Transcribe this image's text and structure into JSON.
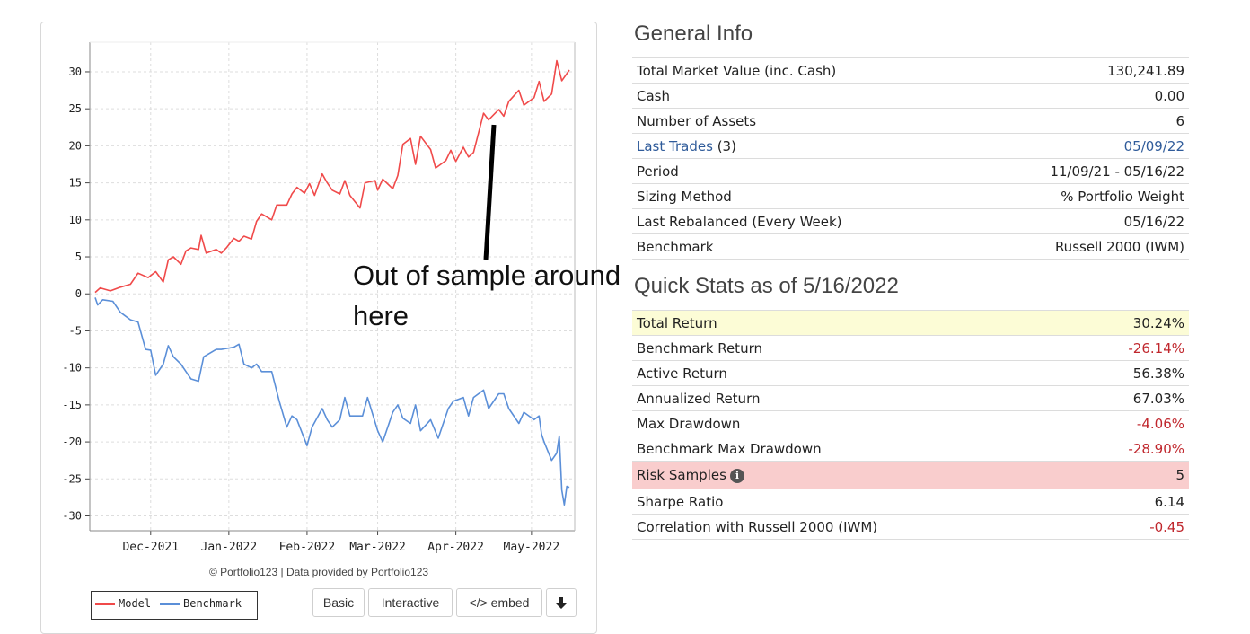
{
  "chart_data": {
    "type": "line",
    "title": "",
    "xlabel": "",
    "ylabel": "",
    "ylim": [
      -32,
      34
    ],
    "yticks": [
      30,
      25,
      20,
      15,
      10,
      5,
      0,
      -5,
      -10,
      -15,
      -20,
      -25,
      -30
    ],
    "x_tick_labels": [
      "Dec-2021",
      "Jan-2022",
      "Feb-2022",
      "Mar-2022",
      "Apr-2022",
      "May-2022"
    ],
    "x_tick_dates": [
      "2021-12-01",
      "2022-01-01",
      "2022-02-01",
      "2022-03-01",
      "2022-04-01",
      "2022-05-01"
    ],
    "x_range": [
      "2021-11-09",
      "2022-05-16"
    ],
    "grid": true,
    "legend_position": "bottom-left",
    "series": [
      {
        "name": "Model",
        "color": "#f04a4a",
        "points": [
          [
            "2021-11-09",
            0.2
          ],
          [
            "2021-11-11",
            0.8
          ],
          [
            "2021-11-15",
            0.4
          ],
          [
            "2021-11-19",
            0.9
          ],
          [
            "2021-11-23",
            1.3
          ],
          [
            "2021-11-26",
            2.8
          ],
          [
            "2021-11-30",
            2.2
          ],
          [
            "2021-12-03",
            3.0
          ],
          [
            "2021-12-06",
            1.6
          ],
          [
            "2021-12-08",
            4.6
          ],
          [
            "2021-12-10",
            5.0
          ],
          [
            "2021-12-13",
            4.0
          ],
          [
            "2021-12-15",
            5.8
          ],
          [
            "2021-12-17",
            6.2
          ],
          [
            "2021-12-20",
            6.0
          ],
          [
            "2021-12-21",
            7.9
          ],
          [
            "2021-12-23",
            5.5
          ],
          [
            "2021-12-27",
            6.0
          ],
          [
            "2021-12-29",
            5.5
          ],
          [
            "2021-12-31",
            6.2
          ],
          [
            "2022-01-03",
            7.5
          ],
          [
            "2022-01-05",
            7.1
          ],
          [
            "2022-01-07",
            7.8
          ],
          [
            "2022-01-10",
            7.4
          ],
          [
            "2022-01-12",
            9.8
          ],
          [
            "2022-01-14",
            10.8
          ],
          [
            "2022-01-18",
            10.0
          ],
          [
            "2022-01-20",
            12.0
          ],
          [
            "2022-01-24",
            12.0
          ],
          [
            "2022-01-26",
            13.5
          ],
          [
            "2022-01-28",
            14.4
          ],
          [
            "2022-01-31",
            13.6
          ],
          [
            "2022-02-02",
            14.9
          ],
          [
            "2022-02-04",
            13.3
          ],
          [
            "2022-02-07",
            16.2
          ],
          [
            "2022-02-09",
            15.0
          ],
          [
            "2022-02-11",
            14.0
          ],
          [
            "2022-02-14",
            13.5
          ],
          [
            "2022-02-16",
            15.3
          ],
          [
            "2022-02-18",
            13.3
          ],
          [
            "2022-02-22",
            11.6
          ],
          [
            "2022-02-24",
            15.0
          ],
          [
            "2022-02-28",
            15.3
          ],
          [
            "2022-03-01",
            14.0
          ],
          [
            "2022-03-03",
            15.5
          ],
          [
            "2022-03-07",
            14.2
          ],
          [
            "2022-03-09",
            16.0
          ],
          [
            "2022-03-11",
            20.2
          ],
          [
            "2022-03-14",
            21.0
          ],
          [
            "2022-03-16",
            17.5
          ],
          [
            "2022-03-18",
            21.3
          ],
          [
            "2022-03-22",
            19.5
          ],
          [
            "2022-03-24",
            17.0
          ],
          [
            "2022-03-28",
            18.0
          ],
          [
            "2022-03-30",
            19.4
          ],
          [
            "2022-04-01",
            17.9
          ],
          [
            "2022-04-04",
            19.8
          ],
          [
            "2022-04-06",
            18.5
          ],
          [
            "2022-04-08",
            19.1
          ],
          [
            "2022-04-12",
            24.4
          ],
          [
            "2022-04-14",
            23.5
          ],
          [
            "2022-04-18",
            24.9
          ],
          [
            "2022-04-20",
            24.0
          ],
          [
            "2022-04-22",
            26.0
          ],
          [
            "2022-04-26",
            27.5
          ],
          [
            "2022-04-28",
            25.5
          ],
          [
            "2022-05-02",
            26.5
          ],
          [
            "2022-05-04",
            28.7
          ],
          [
            "2022-05-06",
            26.0
          ],
          [
            "2022-05-09",
            27.0
          ],
          [
            "2022-05-11",
            31.5
          ],
          [
            "2022-05-13",
            28.8
          ],
          [
            "2022-05-16",
            30.24
          ]
        ]
      },
      {
        "name": "Benchmark",
        "color": "#5b8fd8",
        "points": [
          [
            "2021-11-09",
            -0.5
          ],
          [
            "2021-11-10",
            -1.5
          ],
          [
            "2021-11-12",
            -0.8
          ],
          [
            "2021-11-16",
            -1.0
          ],
          [
            "2021-11-19",
            -2.5
          ],
          [
            "2021-11-23",
            -3.5
          ],
          [
            "2021-11-26",
            -3.8
          ],
          [
            "2021-11-29",
            -7.5
          ],
          [
            "2021-12-01",
            -7.6
          ],
          [
            "2021-12-03",
            -11.0
          ],
          [
            "2021-12-06",
            -9.5
          ],
          [
            "2021-12-08",
            -7.0
          ],
          [
            "2021-12-10",
            -8.5
          ],
          [
            "2021-12-13",
            -9.5
          ],
          [
            "2021-12-15",
            -10.5
          ],
          [
            "2021-12-17",
            -11.5
          ],
          [
            "2021-12-20",
            -11.8
          ],
          [
            "2021-12-22",
            -8.5
          ],
          [
            "2021-12-27",
            -7.5
          ],
          [
            "2021-12-29",
            -7.5
          ],
          [
            "2022-01-03",
            -7.2
          ],
          [
            "2022-01-05",
            -6.8
          ],
          [
            "2022-01-07",
            -9.5
          ],
          [
            "2022-01-10",
            -10.0
          ],
          [
            "2022-01-12",
            -9.5
          ],
          [
            "2022-01-14",
            -10.5
          ],
          [
            "2022-01-18",
            -10.5
          ],
          [
            "2022-01-21",
            -14.5
          ],
          [
            "2022-01-24",
            -18.0
          ],
          [
            "2022-01-26",
            -16.5
          ],
          [
            "2022-01-28",
            -17.0
          ],
          [
            "2022-02-01",
            -20.5
          ],
          [
            "2022-02-03",
            -18.0
          ],
          [
            "2022-02-07",
            -15.5
          ],
          [
            "2022-02-09",
            -17.0
          ],
          [
            "2022-02-11",
            -18.0
          ],
          [
            "2022-02-14",
            -17.0
          ],
          [
            "2022-02-16",
            -14.0
          ],
          [
            "2022-02-18",
            -16.5
          ],
          [
            "2022-02-23",
            -16.5
          ],
          [
            "2022-02-25",
            -14.0
          ],
          [
            "2022-03-01",
            -18.5
          ],
          [
            "2022-03-03",
            -20.0
          ],
          [
            "2022-03-07",
            -16.0
          ],
          [
            "2022-03-09",
            -15.0
          ],
          [
            "2022-03-11",
            -16.8
          ],
          [
            "2022-03-14",
            -17.5
          ],
          [
            "2022-03-16",
            -15.0
          ],
          [
            "2022-03-18",
            -18.5
          ],
          [
            "2022-03-22",
            -17.0
          ],
          [
            "2022-03-25",
            -19.5
          ],
          [
            "2022-03-29",
            -15.5
          ],
          [
            "2022-03-31",
            -14.5
          ],
          [
            "2022-04-04",
            -14.0
          ],
          [
            "2022-04-06",
            -16.5
          ],
          [
            "2022-04-08",
            -14.0
          ],
          [
            "2022-04-12",
            -13.0
          ],
          [
            "2022-04-14",
            -15.5
          ],
          [
            "2022-04-18",
            -13.5
          ],
          [
            "2022-04-20",
            -13.5
          ],
          [
            "2022-04-22",
            -15.5
          ],
          [
            "2022-04-26",
            -17.5
          ],
          [
            "2022-04-28",
            -16.0
          ],
          [
            "2022-05-02",
            -17.0
          ],
          [
            "2022-05-04",
            -16.5
          ],
          [
            "2022-05-05",
            -19.0
          ],
          [
            "2022-05-06",
            -20.0
          ],
          [
            "2022-05-09",
            -22.5
          ],
          [
            "2022-05-11",
            -21.5
          ],
          [
            "2022-05-12",
            -19.2
          ],
          [
            "2022-05-13",
            -26.5
          ],
          [
            "2022-05-14",
            -28.5
          ],
          [
            "2022-05-15",
            -26.0
          ],
          [
            "2022-05-16",
            -26.14
          ]
        ]
      }
    ]
  },
  "chart_footer": {
    "credit": "© Portfolio123 | Data provided by Portfolio123",
    "legend_model": "Model",
    "legend_benchmark": "Benchmark",
    "buttons": {
      "basic": "Basic",
      "interactive": "Interactive",
      "embed": "</> embed",
      "download_icon": "download-arrow-icon"
    }
  },
  "annotation": {
    "line1": "Out of sample around",
    "line2": "here"
  },
  "general_info": {
    "title": "General Info",
    "rows": [
      {
        "label": "Total Market Value (inc. Cash)",
        "value": "130,241.89"
      },
      {
        "label": "Cash",
        "value": "0.00"
      },
      {
        "label": "Number of Assets",
        "value": "6"
      },
      {
        "label": "Last Trades",
        "label_suffix": "(3)",
        "value": "05/09/22"
      },
      {
        "label": "Period",
        "value": "11/09/21 - 05/16/22"
      },
      {
        "label": "Sizing Method",
        "value": "% Portfolio Weight"
      },
      {
        "label": "Last Rebalanced (Every Week)",
        "value": "05/16/22"
      },
      {
        "label": "Benchmark",
        "value": "Russell 2000 (IWM)"
      }
    ]
  },
  "quick_stats": {
    "title": "Quick Stats as of 5/16/2022",
    "rows": [
      {
        "label": "Total Return",
        "value": "30.24%"
      },
      {
        "label": "Benchmark Return",
        "value": "-26.14%"
      },
      {
        "label": "Active Return",
        "value": "56.38%"
      },
      {
        "label": "Annualized Return",
        "value": "67.03%"
      },
      {
        "label": "Max Drawdown",
        "value": "-4.06%"
      },
      {
        "label": "Benchmark Max Drawdown",
        "value": "-28.90%"
      },
      {
        "label": "Risk Samples",
        "value": "5",
        "icon": "info-icon"
      },
      {
        "label": "Sharpe Ratio",
        "value": "6.14"
      },
      {
        "label": "Correlation with Russell 2000 (IWM)",
        "value": "-0.45"
      }
    ]
  },
  "colors": {
    "negative": "#c0272d",
    "link": "#2f5b9a",
    "highlight_yellow": "#fcfcd6",
    "highlight_red": "#f9cdcd"
  }
}
